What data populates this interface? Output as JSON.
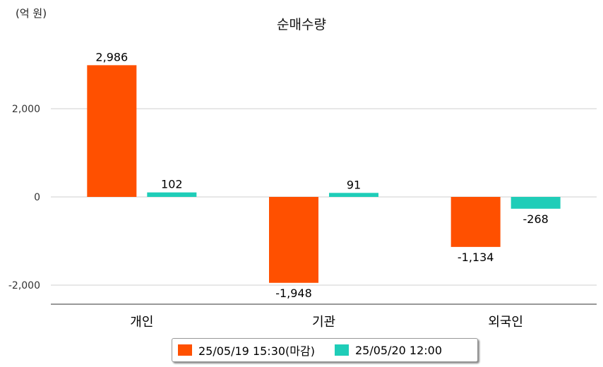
{
  "unit_label": "(억 원)",
  "chart_data": {
    "type": "bar",
    "title": "순매수량",
    "categories": [
      "개인",
      "기관",
      "외국인"
    ],
    "series": [
      {
        "name": "25/05/19 15:30(마감)",
        "color": "#ff5000",
        "values": [
          2986,
          -1948,
          -1134
        ],
        "labels": [
          "2,986",
          "-1,948",
          "-1,134"
        ]
      },
      {
        "name": "25/05/20 12:00",
        "color": "#1fcdb8",
        "values": [
          102,
          91,
          -268
        ],
        "labels": [
          "102",
          "91",
          "-268"
        ]
      }
    ],
    "yticks": [
      2000,
      0,
      -2000
    ],
    "ytick_labels": [
      "2,000",
      "0",
      "-2,000"
    ],
    "ylim": [
      -2400,
      3000
    ],
    "grid": true,
    "legend": "bottom"
  }
}
